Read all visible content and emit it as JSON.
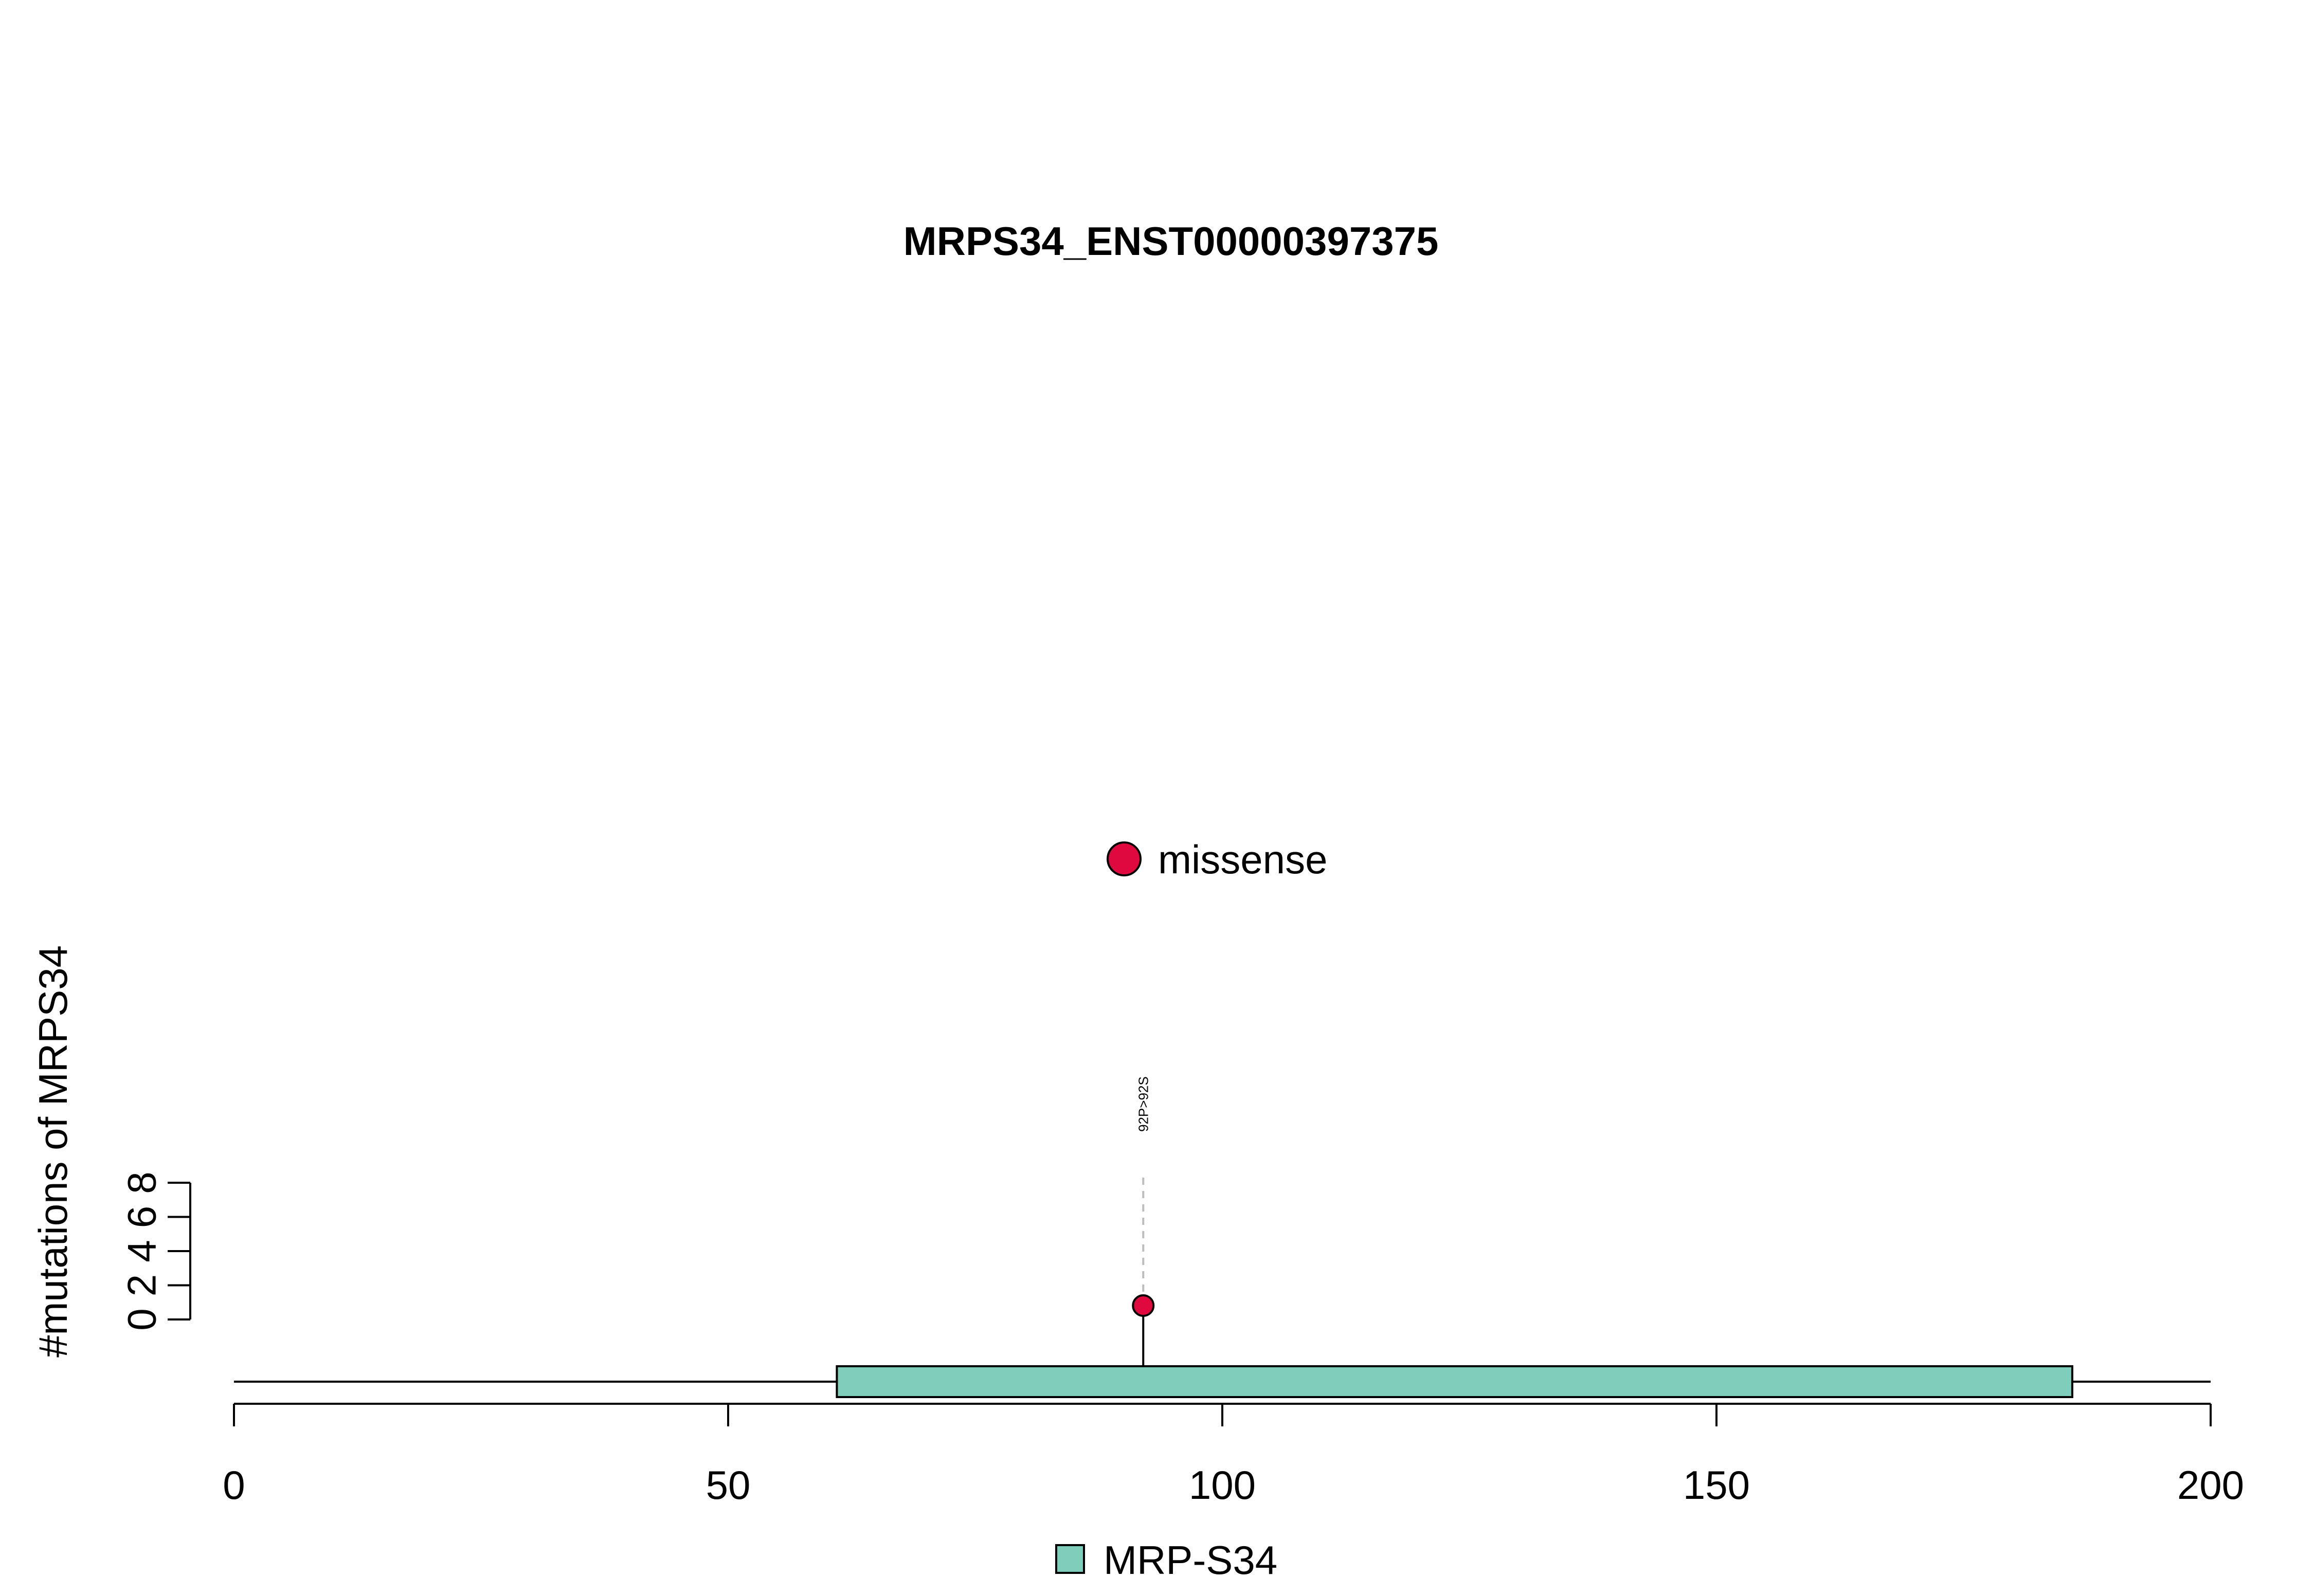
{
  "chart_data": {
    "type": "lollipop",
    "title": "MRPS34_ENST00000397375",
    "ylabel": "#mutations of MRPS34",
    "xlabel": "",
    "xlim": [
      0,
      200
    ],
    "x_ticks": [
      0,
      50,
      100,
      150,
      200
    ],
    "ylim": [
      0,
      8
    ],
    "y_ticks": [
      0,
      2,
      4,
      6,
      8
    ],
    "protein_length": 200,
    "domains": [
      {
        "name": "MRP-S34",
        "start": 61,
        "end": 186,
        "color": "#7fcdbb"
      }
    ],
    "mutations": [
      {
        "position": 92,
        "count": 1,
        "label": "92P>92S",
        "type": "missense",
        "color": "#e0093f"
      }
    ],
    "legend_top": [
      {
        "label": "missense",
        "color": "#e0093f"
      }
    ],
    "legend_bottom": [
      {
        "label": "MRP-S34",
        "color": "#7fcdbb"
      }
    ]
  }
}
